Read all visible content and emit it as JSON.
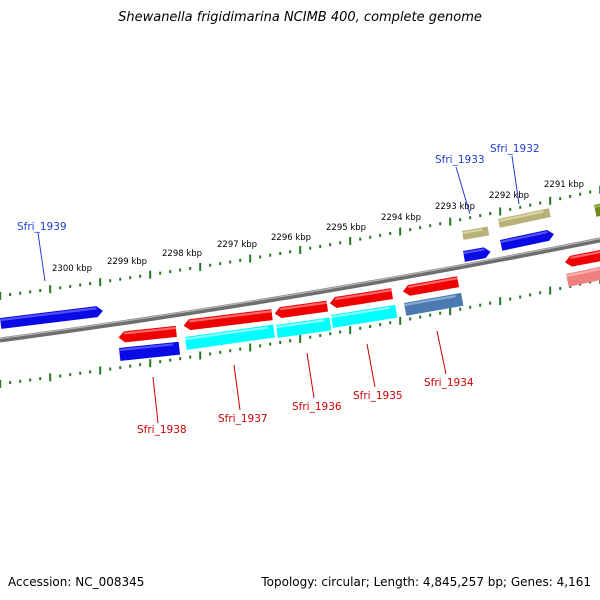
{
  "title": "Shewanella frigidimarina NCIMB 400, complete genome",
  "accession": "Accession: NC_008345",
  "stats": "Topology: circular; Length: 4,845,257 bp; Genes: 4,161",
  "ticks": [
    {
      "label": "2300 kbp"
    },
    {
      "label": "2299 kbp"
    },
    {
      "label": "2298 kbp"
    },
    {
      "label": "2297 kbp"
    },
    {
      "label": "2296 kbp"
    },
    {
      "label": "2295 kbp"
    },
    {
      "label": "2294 kbp"
    },
    {
      "label": "2293 kbp"
    },
    {
      "label": "2292 kbp"
    },
    {
      "label": "2291 kbp"
    }
  ],
  "genes": [
    {
      "label": "Sfri_1939",
      "strand": "forward",
      "color": "#1f3fd0"
    },
    {
      "label": "Sfri_1938",
      "strand": "reverse",
      "color": "#cc0000"
    },
    {
      "label": "Sfri_1937",
      "strand": "reverse",
      "color": "#cc0000"
    },
    {
      "label": "Sfri_1936",
      "strand": "reverse",
      "color": "#cc0000"
    },
    {
      "label": "Sfri_1935",
      "strand": "reverse",
      "color": "#cc0000"
    },
    {
      "label": "Sfri_1934",
      "strand": "reverse",
      "color": "#cc0000"
    },
    {
      "label": "Sfri_1933",
      "strand": "forward",
      "color": "#1f3fd0"
    },
    {
      "label": "Sfri_1932",
      "strand": "forward",
      "color": "#1f3fd0"
    }
  ],
  "colors": {
    "backbone": "#808080",
    "forward_cds": "#0000ee",
    "reverse_cds": "#ff0000",
    "cog_cyan": "#00ffff",
    "cog_steelblue": "#4a7ab0",
    "cog_khaki": "#b7b077",
    "cog_olive": "#6e8a1e",
    "cog_pink": "#f08080",
    "tick": "#1f7a1f"
  }
}
